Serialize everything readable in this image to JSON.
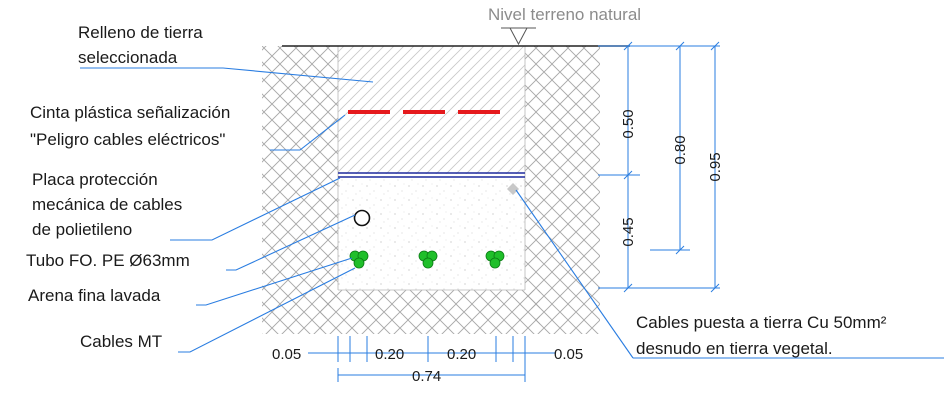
{
  "colors": {
    "leader": "#2a7de1",
    "dimension": "#2a7de1",
    "tape": "#e5191c",
    "plate": "#1f2a9e",
    "mt_cable": "#1fbf2a",
    "hatch": "#9a9a9a",
    "ground_line": "#222222"
  },
  "labels": {
    "ground_level": "Nivel terreno natural",
    "fill_line1": "Relleno de tierra",
    "fill_line2": "seleccionada",
    "tape_line1": "Cinta plástica señalización",
    "tape_line2": "\"Peligro cables eléctricos\"",
    "plate_line1": "Placa protección",
    "plate_line2": "mecánica de cables",
    "plate_line3": "de polietileno",
    "fo_tube": "Tubo FO. PE Ø63mm",
    "sand": "Arena fina lavada",
    "mt_cables": "Cables MT",
    "earth_line1": "Cables puesta a tierra Cu 50mm²",
    "earth_line2": "desnudo en tierra vegetal."
  },
  "dimensions": {
    "d_050": "0.50",
    "d_080": "0.80",
    "d_095": "0.95",
    "d_045": "0.45",
    "b_005_left": "0.05",
    "b_020_a": "0.20",
    "b_020_b": "0.20",
    "b_005_right": "0.05",
    "b_074": "0.74"
  }
}
